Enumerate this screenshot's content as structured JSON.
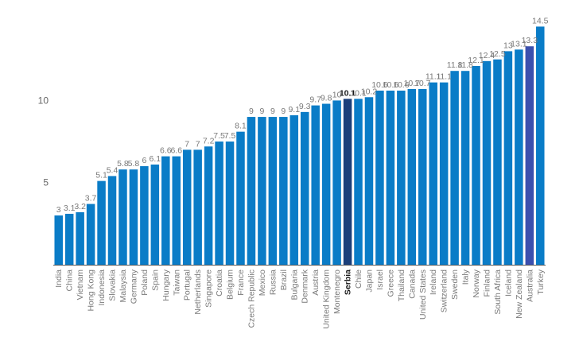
{
  "chart_data": {
    "type": "bar",
    "title": "",
    "xlabel": "",
    "ylabel": "",
    "ylim": [
      0,
      15
    ],
    "yticks": [
      5,
      10
    ],
    "grid": false,
    "legend": "none",
    "highlight": "Serbia",
    "highlight_secondary": "Australia",
    "categories": [
      "India",
      "China",
      "Vietnam",
      "Hong Kong",
      "Indonesia",
      "Slovakia",
      "Malaysia",
      "Germany",
      "Poland",
      "Spain",
      "Hungary",
      "Taiwan",
      "Portugal",
      "Netherlands",
      "Singapore",
      "Croatia",
      "Belgium",
      "France",
      "Czech Republic",
      "Mexico",
      "Russia",
      "Brazil",
      "Bulgaria",
      "Denmark",
      "Austria",
      "United Kingdom",
      "Montenegro",
      "Serbia",
      "Chile",
      "Japan",
      "Israel",
      "Greece",
      "Thailand",
      "Canada",
      "United States",
      "Ireland",
      "Switzerland",
      "Sweden",
      "Italy",
      "Norway",
      "Finland",
      "South Africa",
      "Iceland",
      "New Zealand",
      "Australia",
      "Turkey"
    ],
    "values": [
      3,
      3.1,
      3.2,
      3.7,
      5.1,
      5.4,
      5.8,
      5.8,
      6,
      6.1,
      6.6,
      6.6,
      7,
      7,
      7.2,
      7.5,
      7.5,
      8.1,
      9,
      9,
      9,
      9,
      9.1,
      9.3,
      9.7,
      9.8,
      10,
      10.1,
      10.1,
      10.2,
      10.6,
      10.6,
      10.6,
      10.7,
      10.7,
      11.1,
      11.1,
      11.8,
      11.8,
      12.1,
      12.4,
      12.5,
      13,
      13.1,
      13.3,
      14.5
    ],
    "value_labels": [
      "3",
      "3.1",
      "3.2",
      "3.7",
      "5.1",
      "5.4",
      "5.8",
      "5.8",
      "6",
      "6.1",
      "6.6",
      "6.6",
      "7",
      "7",
      "7.2",
      "7.5",
      "7.5",
      "8.1",
      "9",
      "9",
      "9",
      "9",
      "9.1",
      "9.3",
      "9.7",
      "9.8",
      "10",
      "10.1",
      "10.1",
      "10.2",
      "10.6",
      "10.6",
      "10.6",
      "10.7",
      "10.7",
      "11.1",
      "11.1",
      "11.8",
      "11.8",
      "12.1",
      "12.4",
      "12.5",
      "13",
      "13.1",
      "13.3",
      "14.5"
    ],
    "colors": {
      "bar": "#0a7cc7",
      "highlight": "#1b3f7a",
      "highlight_secondary": "#3b4fae",
      "axis": "#555555"
    }
  }
}
